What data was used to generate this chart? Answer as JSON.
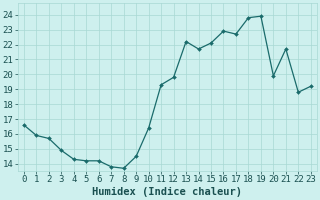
{
  "x": [
    0,
    1,
    2,
    3,
    4,
    5,
    6,
    7,
    8,
    9,
    10,
    11,
    12,
    13,
    14,
    15,
    16,
    17,
    18,
    19,
    20,
    21,
    22,
    23
  ],
  "y": [
    16.6,
    15.9,
    15.7,
    14.9,
    14.3,
    14.2,
    14.2,
    13.8,
    13.7,
    14.5,
    16.4,
    19.3,
    19.8,
    22.2,
    21.7,
    22.1,
    22.9,
    22.7,
    23.8,
    23.9,
    19.9,
    21.7,
    18.8,
    19.2
  ],
  "line_color": "#1a6b6b",
  "marker": "D",
  "marker_size": 2.0,
  "xlabel": "Humidex (Indice chaleur)",
  "ylabel_ticks": [
    14,
    15,
    16,
    17,
    18,
    19,
    20,
    21,
    22,
    23,
    24
  ],
  "ylim": [
    13.5,
    24.8
  ],
  "xlim": [
    -0.5,
    23.5
  ],
  "bg_color": "#cef0ee",
  "grid_color": "#a8d8d4",
  "tick_color": "#1a5050",
  "xlabel_color": "#1a5050",
  "font_size_xlabel": 7.5,
  "font_size_ticks": 6.5
}
